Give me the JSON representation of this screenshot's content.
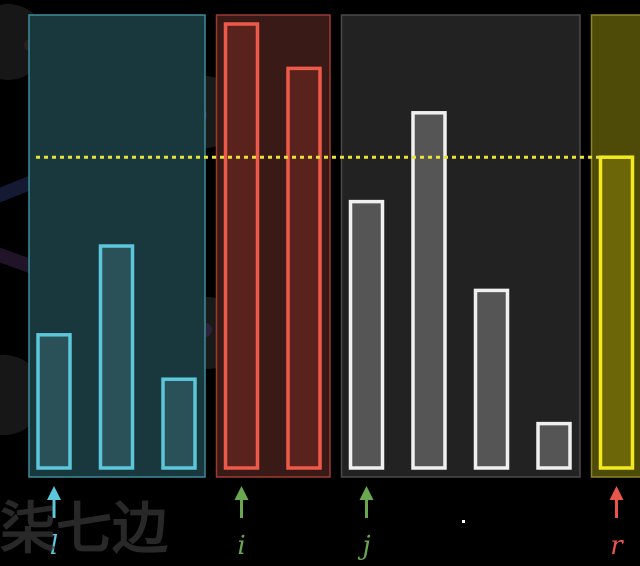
{
  "diagram": {
    "background": "#000000",
    "pivot_line_color": "#e8e23a",
    "pivot_value": 7,
    "bar_max": 10,
    "regions": [
      {
        "name": "less-than-pivot",
        "fill": "#18383e",
        "stroke": "#3c8c9a",
        "bar_stroke": "#5cc6da",
        "bar_fill": "#2a5058",
        "bars": [
          3,
          5,
          2
        ]
      },
      {
        "name": "greater-than-pivot",
        "fill": "#3a1a16",
        "stroke": "#9c3a30",
        "bar_stroke": "#ee5a4a",
        "bar_fill": "#5a221c",
        "bars": [
          10,
          9
        ]
      },
      {
        "name": "unprocessed",
        "fill": "#222222",
        "stroke": "#4a4a4a",
        "bar_stroke": "#f0f0f0",
        "bar_fill": "#555555",
        "bars": [
          6,
          8,
          4,
          1
        ]
      },
      {
        "name": "pivot",
        "fill": "#4e4a08",
        "stroke": "#8c8620",
        "bar_stroke": "#f2ea1c",
        "bar_fill": "#6c6608",
        "bars": [
          7
        ]
      }
    ],
    "pointers": [
      {
        "label": "l",
        "color": "#5cc6da",
        "bar_index": 0
      },
      {
        "label": "i",
        "color": "#6aa84f",
        "bar_index": 3
      },
      {
        "label": "j",
        "color": "#6aa84f",
        "bar_index": 5
      },
      {
        "label": "r",
        "color": "#e8564a",
        "bar_index": 9
      }
    ],
    "watermark": "柒七边"
  }
}
